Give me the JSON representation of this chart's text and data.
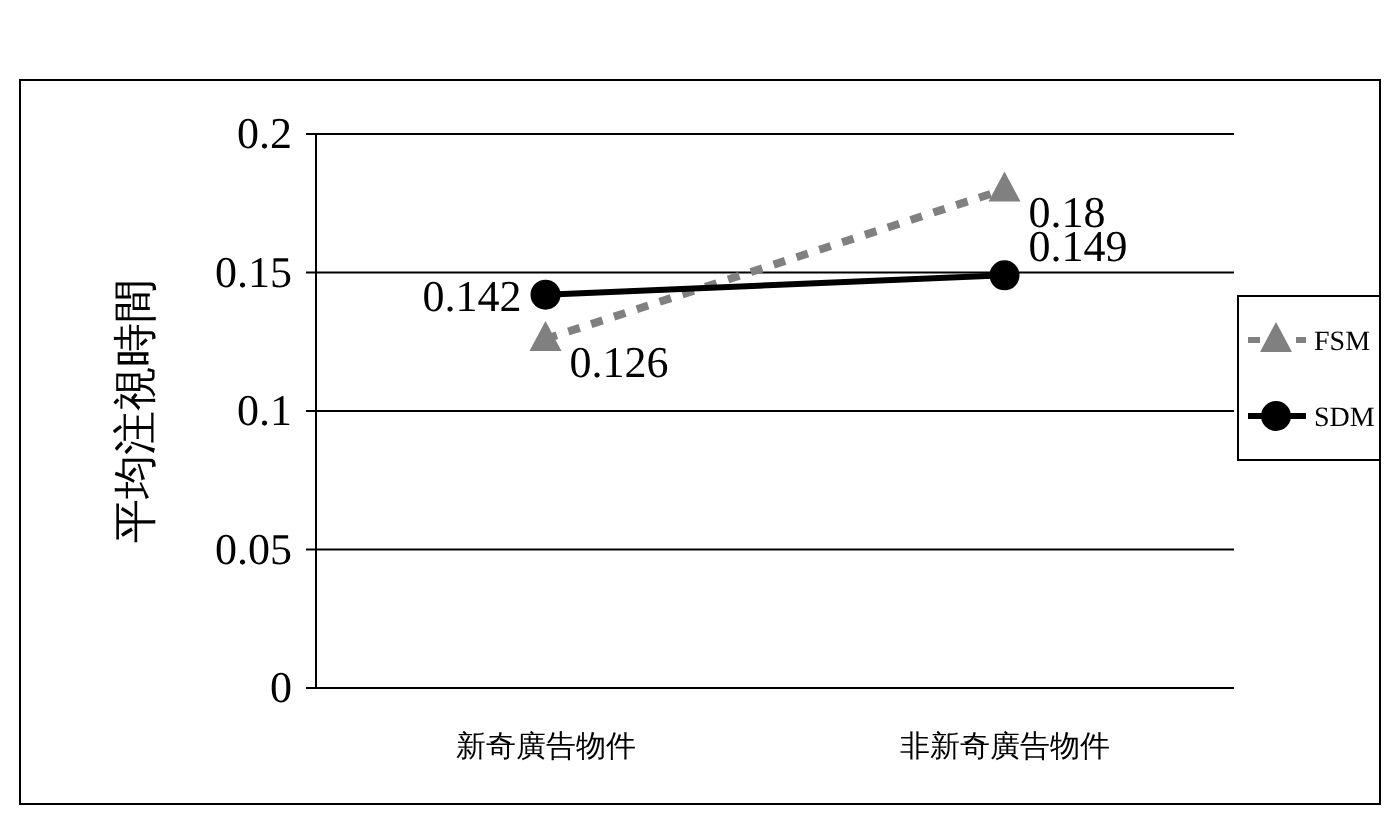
{
  "chart_data": {
    "type": "line",
    "ylabel": "平均注視時間",
    "categories": [
      "新奇廣告物件",
      "非新奇廣告物件"
    ],
    "series": [
      {
        "name": "FSM",
        "color": "#808080",
        "values": [
          0.126,
          0.18
        ],
        "marker": "triangle",
        "line_style": "dashed"
      },
      {
        "name": "SDM",
        "color": "#000000",
        "values": [
          0.142,
          0.149
        ],
        "marker": "circle",
        "line_style": "solid"
      }
    ],
    "ylim": [
      0,
      0.2
    ],
    "yticks": [
      0,
      0.05,
      0.1,
      0.15,
      0.2
    ],
    "grid": "y",
    "legend": "right",
    "data_labels": true
  }
}
